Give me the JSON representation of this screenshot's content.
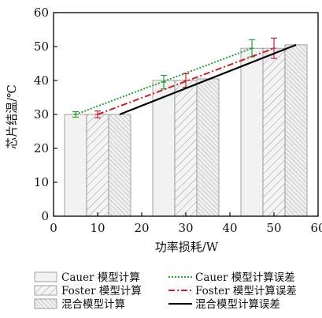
{
  "chart_data": {
    "type": "bar",
    "xlabel": "功率损耗/W",
    "ylabel": "芯片结温/℃",
    "xlim": [
      0,
      60
    ],
    "ylim": [
      0,
      60
    ],
    "x_ticks": [
      0,
      10,
      20,
      30,
      40,
      50,
      60
    ],
    "y_ticks": [
      0,
      10,
      20,
      30,
      40,
      50,
      60
    ],
    "groups_x": [
      10,
      30,
      50
    ],
    "bar_series": [
      {
        "name": "Cauer 模型计算",
        "pattern": "plain",
        "values": [
          30,
          40,
          49.5
        ]
      },
      {
        "name": "Foster 模型计算",
        "pattern": "hatch-wide",
        "values": [
          30,
          40,
          49.5
        ]
      },
      {
        "name": "混合模型计算",
        "pattern": "hatch-dense",
        "values": [
          30,
          40.5,
          50.5
        ]
      }
    ],
    "line_series": [
      {
        "name": "Cauer 模型计算误差",
        "color": "#2e9a3a",
        "dash": "dotted",
        "x": [
          5,
          45
        ],
        "y": [
          30,
          49.5
        ],
        "error_bars": [
          {
            "x": 5,
            "y": 30,
            "err": 0.8
          },
          {
            "x": 25,
            "y": 39.5,
            "err": 2
          },
          {
            "x": 45,
            "y": 49.5,
            "err": 2.5
          }
        ]
      },
      {
        "name": "Foster 模型计算误差",
        "color": "#c0242c",
        "dash": "dash-dot",
        "x": [
          10,
          50
        ],
        "y": [
          30,
          49.5
        ],
        "error_bars": [
          {
            "x": 10,
            "y": 30,
            "err": 1
          },
          {
            "x": 30,
            "y": 40,
            "err": 2
          },
          {
            "x": 50,
            "y": 49.5,
            "err": 3
          }
        ]
      },
      {
        "name": "混合模型计算误差",
        "color": "#000000",
        "dash": "solid",
        "x": [
          15,
          55
        ],
        "y": [
          30,
          50.5
        ]
      }
    ],
    "grid": false,
    "legend_position": "bottom"
  }
}
